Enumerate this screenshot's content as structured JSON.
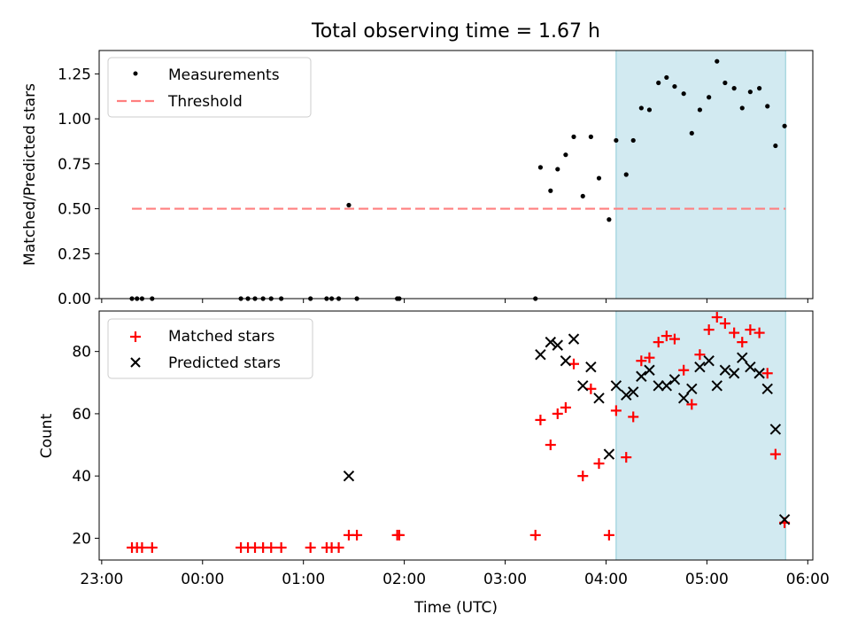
{
  "chart_data": [
    {
      "type": "scatter",
      "title": "Total observing time = 1.67 h",
      "xlabel": "",
      "ylabel": "Matched/Predicted stars",
      "xlim_hours": [
        22.975,
        30.05
      ],
      "ylim": [
        0,
        1.38
      ],
      "yticks": [
        "0.00",
        "0.25",
        "0.50",
        "0.75",
        "1.00",
        "1.25"
      ],
      "ytick_values": [
        0,
        0.25,
        0.5,
        0.75,
        1.0,
        1.25
      ],
      "observing_window_hours": [
        28.1,
        29.78
      ],
      "legend": [
        "Measurements",
        "Threshold"
      ],
      "threshold": {
        "value": 0.5,
        "x_hours": [
          23.3,
          29.78
        ]
      },
      "series": [
        {
          "name": "Measurements",
          "x_hours": [
            23.3,
            23.35,
            23.4,
            23.5,
            24.38,
            24.45,
            24.52,
            24.6,
            24.68,
            24.78,
            25.07,
            25.23,
            25.28,
            25.35,
            25.45,
            25.53,
            25.93,
            25.95,
            27.3,
            27.35,
            27.45,
            27.52,
            27.6,
            27.68,
            27.77,
            27.85,
            27.93,
            28.03,
            28.1,
            28.2,
            28.27,
            28.35,
            28.43,
            28.52,
            28.6,
            28.68,
            28.77,
            28.85,
            28.93,
            29.02,
            29.1,
            29.18,
            29.27,
            29.35,
            29.43,
            29.52,
            29.6,
            29.68,
            29.77
          ],
          "values": [
            0,
            0,
            0,
            0,
            0,
            0,
            0,
            0,
            0,
            0,
            0,
            0,
            0,
            0,
            0.52,
            0,
            0,
            0,
            0,
            0.73,
            0.6,
            0.72,
            0.8,
            0.9,
            0.57,
            0.9,
            0.67,
            0.44,
            0.88,
            0.69,
            0.88,
            1.06,
            1.05,
            1.2,
            1.23,
            1.18,
            1.14,
            0.92,
            1.05,
            1.12,
            1.32,
            1.2,
            1.17,
            1.06,
            1.15,
            1.17,
            1.07,
            0.85,
            0.96
          ]
        }
      ]
    },
    {
      "type": "scatter",
      "title": "",
      "xlabel": "Time (UTC)",
      "ylabel": "Count",
      "xlim_hours": [
        22.975,
        30.05
      ],
      "ylim": [
        13,
        93
      ],
      "yticks": [
        "20",
        "40",
        "60",
        "80"
      ],
      "ytick_values": [
        20,
        40,
        60,
        80
      ],
      "xticks": [
        "23:00",
        "00:00",
        "01:00",
        "02:00",
        "03:00",
        "04:00",
        "05:00",
        "06:00"
      ],
      "xtick_values_hours": [
        23,
        24,
        25,
        26,
        27,
        28,
        29,
        30
      ],
      "observing_window_hours": [
        28.1,
        29.78
      ],
      "legend": [
        "Matched stars",
        "Predicted stars"
      ],
      "series": [
        {
          "name": "Matched stars",
          "marker": "+",
          "color": "#ff0000",
          "x_hours": [
            23.3,
            23.35,
            23.4,
            23.5,
            24.38,
            24.45,
            24.52,
            24.6,
            24.68,
            24.78,
            25.07,
            25.23,
            25.28,
            25.35,
            25.45,
            25.53,
            25.93,
            25.95,
            27.3,
            27.35,
            27.45,
            27.52,
            27.6,
            27.68,
            27.77,
            27.85,
            27.93,
            28.03,
            28.1,
            28.2,
            28.27,
            28.35,
            28.43,
            28.52,
            28.6,
            28.68,
            28.77,
            28.85,
            28.93,
            29.02,
            29.1,
            29.18,
            29.27,
            29.35,
            29.43,
            29.52,
            29.6,
            29.68,
            29.77
          ],
          "values": [
            17,
            17,
            17,
            17,
            17,
            17,
            17,
            17,
            17,
            17,
            17,
            17,
            17,
            17,
            21,
            21,
            21,
            21,
            21,
            58,
            50,
            60,
            62,
            76,
            40,
            68,
            44,
            21,
            61,
            46,
            59,
            77,
            78,
            83,
            85,
            84,
            74,
            63,
            79,
            87,
            91,
            89,
            86,
            83,
            87,
            86,
            73,
            47,
            25
          ]
        },
        {
          "name": "Predicted stars",
          "marker": "x",
          "color": "#000000",
          "x_hours": [
            25.45,
            27.35,
            27.45,
            27.52,
            27.6,
            27.68,
            27.77,
            27.85,
            27.93,
            28.03,
            28.1,
            28.2,
            28.27,
            28.35,
            28.43,
            28.52,
            28.6,
            28.68,
            28.77,
            28.85,
            28.93,
            29.02,
            29.1,
            29.18,
            29.27,
            29.35,
            29.43,
            29.52,
            29.6,
            29.68,
            29.77
          ],
          "values": [
            40,
            79,
            83,
            82,
            77,
            84,
            69,
            75,
            65,
            47,
            69,
            66,
            67,
            72,
            74,
            69,
            69,
            71,
            65,
            68,
            75,
            77,
            69,
            74,
            73,
            78,
            75,
            73,
            68,
            55,
            26
          ]
        }
      ]
    }
  ]
}
